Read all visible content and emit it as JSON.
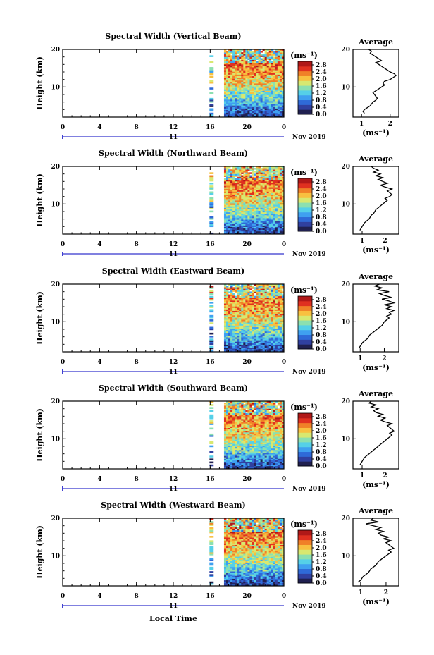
{
  "chart_data": [
    {
      "type": "heatmap",
      "title": "Spectral Width (Vertical Beam)",
      "ylabel": "Height (km)",
      "xlim": [
        0,
        24
      ],
      "ylim": [
        2,
        20
      ],
      "xticks": [
        "0",
        "4",
        "8",
        "12",
        "16",
        "20",
        "0"
      ],
      "yticks": [
        "10",
        "20"
      ],
      "date_label": "11",
      "month_label": "Nov 2019",
      "colorbar": {
        "unit": "(ms⁻¹)",
        "ticks": [
          "0.0",
          "0.4",
          "0.8",
          "1.2",
          "1.6",
          "2.0",
          "2.4",
          "2.8"
        ],
        "range": [
          0.0,
          3.0
        ]
      },
      "average": {
        "title": "Average",
        "xlabel": "(ms⁻¹)",
        "xticks": [
          "1",
          "2"
        ],
        "xlim": [
          0.7,
          2.3
        ],
        "x": [
          1.1,
          1.05,
          1.1,
          1.2,
          1.3,
          1.35,
          1.4,
          1.5,
          1.55,
          1.5,
          1.45,
          1.4,
          1.5,
          1.6,
          1.7,
          1.8,
          1.75,
          1.8,
          2.0,
          2.1,
          2.2,
          2.15,
          2.0,
          1.9,
          1.8,
          1.7,
          1.6,
          1.5,
          1.7,
          1.6,
          1.5,
          1.4,
          1.3,
          1.35,
          1.25
        ],
        "y": [
          3,
          3.5,
          4,
          4.5,
          5,
          5.5,
          6,
          6.5,
          7,
          7.5,
          8,
          8.5,
          9,
          9.5,
          10,
          10.5,
          11,
          11.5,
          12,
          12.5,
          13,
          13.5,
          14,
          14.5,
          15,
          15.5,
          16,
          16.5,
          17,
          17.5,
          18,
          18.5,
          19,
          19.5,
          20
        ]
      },
      "data_span": {
        "start_hour": 16,
        "sparse_until": 16.3,
        "dense_from": 17.5,
        "end_hour": 24
      }
    },
    {
      "type": "heatmap",
      "title": "Spectral Width (Northward Beam)",
      "ylabel": "Height (km)",
      "xlim": [
        0,
        24
      ],
      "ylim": [
        2,
        20
      ],
      "xticks": [
        "0",
        "4",
        "8",
        "12",
        "16",
        "20",
        "0"
      ],
      "yticks": [
        "10",
        "20"
      ],
      "date_label": "11",
      "month_label": "Nov 2019",
      "colorbar": {
        "unit": "(ms⁻¹)",
        "ticks": [
          "0.0",
          "0.4",
          "0.8",
          "1.2",
          "1.6",
          "2.0",
          "2.4",
          "2.8"
        ],
        "range": [
          0.0,
          3.0
        ]
      },
      "average": {
        "title": "Average",
        "xlabel": "(ms⁻¹)",
        "xticks": [
          "1",
          "2"
        ],
        "xlim": [
          0.6,
          2.6
        ],
        "x": [
          0.9,
          0.95,
          1.0,
          1.05,
          1.1,
          1.2,
          1.3,
          1.35,
          1.4,
          1.5,
          1.55,
          1.6,
          1.7,
          1.8,
          1.9,
          2.0,
          2.1,
          2.0,
          2.2,
          2.3,
          2.2,
          2.1,
          2.3,
          2.0,
          1.8,
          2.1,
          1.9,
          1.7,
          1.9,
          1.6,
          1.8,
          1.5,
          1.7,
          1.5,
          1.4
        ],
        "y": [
          3,
          3.5,
          4,
          4.5,
          5,
          5.5,
          6,
          6.5,
          7,
          7.5,
          8,
          8.5,
          9,
          9.5,
          10,
          10.5,
          11,
          11.5,
          12,
          12.5,
          13,
          13.5,
          14,
          14.5,
          15,
          15.5,
          16,
          16.5,
          17,
          17.5,
          18,
          18.5,
          19,
          19.5,
          20
        ]
      },
      "data_span": {
        "start_hour": 16,
        "sparse_until": 16.3,
        "dense_from": 17.5,
        "end_hour": 24
      }
    },
    {
      "type": "heatmap",
      "title": "Spectral Width (Eastward Beam)",
      "ylabel": "Height (km)",
      "xlim": [
        0,
        24
      ],
      "ylim": [
        2,
        20
      ],
      "xticks": [
        "0",
        "4",
        "8",
        "12",
        "16",
        "20",
        "0"
      ],
      "yticks": [
        "10",
        "20"
      ],
      "date_label": "11",
      "month_label": "Nov 2019",
      "colorbar": {
        "unit": "(ms⁻¹)",
        "ticks": [
          "0.0",
          "0.4",
          "0.8",
          "1.2",
          "1.6",
          "2.0",
          "2.4",
          "2.8"
        ],
        "range": [
          0.0,
          3.0
        ]
      },
      "average": {
        "title": "Average",
        "xlabel": "(ms⁻¹)",
        "xticks": [
          "1",
          "2"
        ],
        "xlim": [
          0.7,
          2.6
        ],
        "x": [
          0.95,
          1.0,
          1.05,
          1.1,
          1.2,
          1.3,
          1.35,
          1.4,
          1.5,
          1.6,
          1.7,
          1.8,
          1.9,
          1.95,
          2.0,
          2.1,
          2.2,
          2.1,
          2.3,
          2.2,
          2.4,
          2.1,
          2.3,
          2.0,
          2.4,
          2.2,
          1.9,
          2.3,
          2.0,
          1.8,
          2.2,
          1.7,
          1.9,
          1.6,
          1.8
        ],
        "y": [
          3,
          3.5,
          4,
          4.5,
          5,
          5.5,
          6,
          6.5,
          7,
          7.5,
          8,
          8.5,
          9,
          9.5,
          10,
          10.5,
          11,
          11.5,
          12,
          12.5,
          13,
          13.5,
          14,
          14.5,
          15,
          15.5,
          16,
          16.5,
          17,
          17.5,
          18,
          18.5,
          19,
          19.5,
          20
        ]
      },
      "data_span": {
        "start_hour": 16,
        "sparse_until": 16.3,
        "dense_from": 17.5,
        "end_hour": 24
      }
    },
    {
      "type": "heatmap",
      "title": "Spectral Width (Southward Beam)",
      "ylabel": "Height (km)",
      "xlim": [
        0,
        24
      ],
      "ylim": [
        2,
        20
      ],
      "xticks": [
        "0",
        "4",
        "8",
        "12",
        "16",
        "20",
        "0"
      ],
      "yticks": [
        "10",
        "20"
      ],
      "date_label": "11",
      "month_label": "Nov 2019",
      "colorbar": {
        "unit": "(ms⁻¹)",
        "ticks": [
          "0.0",
          "0.4",
          "0.8",
          "1.2",
          "1.6",
          "2.0",
          "2.4",
          "2.8"
        ],
        "range": [
          0.0,
          3.0
        ]
      },
      "average": {
        "title": "Average",
        "xlabel": "(ms⁻¹)",
        "xticks": [
          "1",
          "2"
        ],
        "xlim": [
          0.6,
          2.6
        ],
        "x": [
          0.9,
          0.95,
          1.0,
          1.05,
          1.1,
          1.2,
          1.3,
          1.4,
          1.5,
          1.6,
          1.7,
          1.8,
          1.9,
          2.0,
          2.1,
          2.2,
          2.3,
          2.2,
          2.4,
          2.3,
          2.2,
          2.1,
          2.3,
          2.0,
          1.8,
          2.0,
          1.7,
          1.9,
          1.6,
          1.5,
          1.7,
          1.4,
          1.6,
          1.3,
          1.4
        ],
        "y": [
          3,
          3.5,
          4,
          4.5,
          5,
          5.5,
          6,
          6.5,
          7,
          7.5,
          8,
          8.5,
          9,
          9.5,
          10,
          10.5,
          11,
          11.5,
          12,
          12.5,
          13,
          13.5,
          14,
          14.5,
          15,
          15.5,
          16,
          16.5,
          17,
          17.5,
          18,
          18.5,
          19,
          19.5,
          20
        ]
      },
      "data_span": {
        "start_hour": 16,
        "sparse_until": 16.3,
        "dense_from": 17.5,
        "end_hour": 24
      }
    },
    {
      "type": "heatmap",
      "title": "Spectral Width (Westward Beam)",
      "ylabel": "Height (km)",
      "xlim": [
        0,
        24
      ],
      "ylim": [
        2,
        20
      ],
      "xticks": [
        "0",
        "4",
        "8",
        "12",
        "16",
        "20",
        "0"
      ],
      "yticks": [
        "10",
        "20"
      ],
      "date_label": "11",
      "month_label": "Nov 2019",
      "xlabel": "Local Time",
      "colorbar": {
        "unit": "(ms⁻¹)",
        "ticks": [
          "0.0",
          "0.4",
          "0.8",
          "1.2",
          "1.6",
          "2.0",
          "2.4",
          "2.8"
        ],
        "range": [
          0.0,
          3.0
        ]
      },
      "average": {
        "title": "Average",
        "xlabel": "(ms⁻¹)",
        "xticks": [
          "1",
          "2"
        ],
        "xlim": [
          0.7,
          2.5
        ],
        "x": [
          0.9,
          1.0,
          1.05,
          1.1,
          1.2,
          1.3,
          1.35,
          1.4,
          1.5,
          1.6,
          1.65,
          1.7,
          1.8,
          1.9,
          2.0,
          2.1,
          2.2,
          2.1,
          2.3,
          2.2,
          2.1,
          2.0,
          2.2,
          1.9,
          2.1,
          1.8,
          1.7,
          1.9,
          1.6,
          1.8,
          1.5,
          1.2,
          1.7,
          1.4,
          1.5
        ],
        "y": [
          3,
          3.5,
          4,
          4.5,
          5,
          5.5,
          6,
          6.5,
          7,
          7.5,
          8,
          8.5,
          9,
          9.5,
          10,
          10.5,
          11,
          11.5,
          12,
          12.5,
          13,
          13.5,
          14,
          14.5,
          15,
          15.5,
          16,
          16.5,
          17,
          17.5,
          18,
          18.5,
          19,
          19.5,
          20
        ]
      },
      "data_span": {
        "start_hour": 16,
        "sparse_until": 16.3,
        "dense_from": 17.5,
        "end_hour": 24
      }
    }
  ],
  "colors": {
    "colormap": [
      "#202050",
      "#3040a0",
      "#2f6ad8",
      "#3fa0f0",
      "#55d0e8",
      "#8ce0b0",
      "#d8e870",
      "#f8c040",
      "#f08028",
      "#e03020",
      "#b01818"
    ],
    "axis": "#000000",
    "date_bar": "#0000c0"
  }
}
